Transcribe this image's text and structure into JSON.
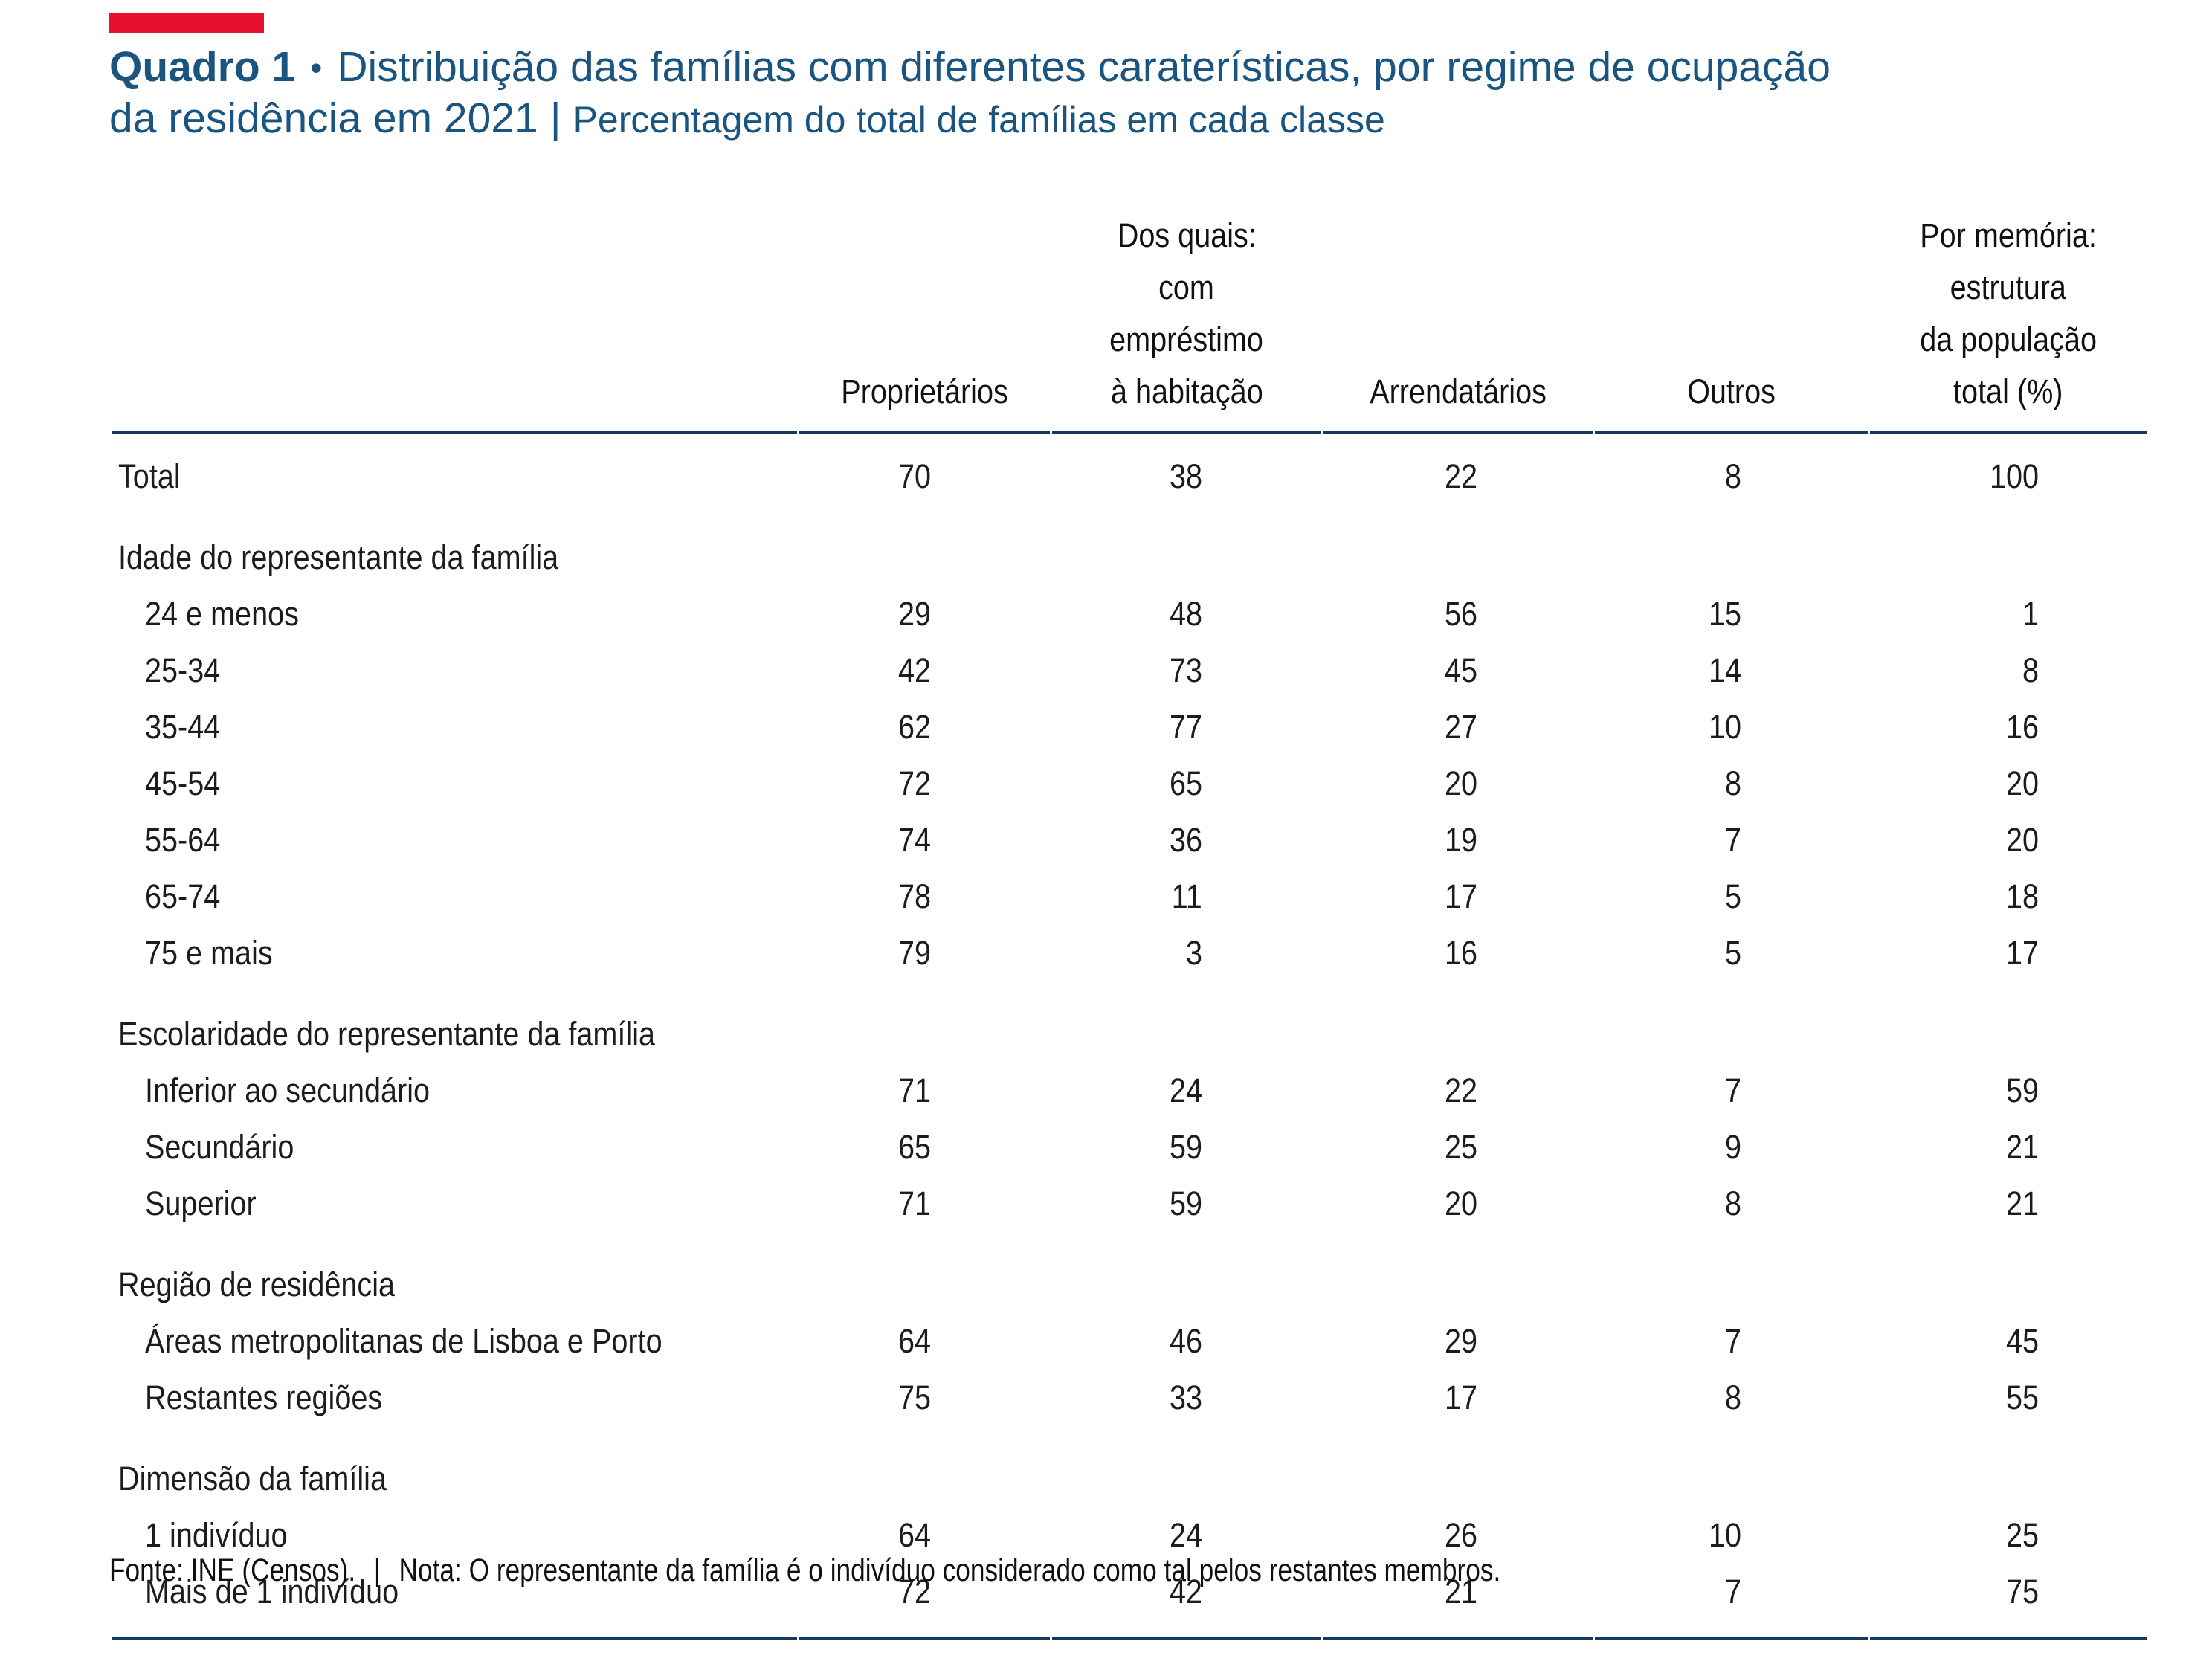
{
  "header": {
    "quadro_label": "Quadro 1",
    "bullet": "•",
    "title_line1": "Distribuição das famílias com diferentes caraterísticas, por regime de ocupação",
    "title_line2": "da residência em 2021",
    "separator": "|",
    "subtitle": "Percentagem do total de famílias em cada classe"
  },
  "table": {
    "columns": [
      {
        "lines": [
          "Proprietários"
        ]
      },
      {
        "lines": [
          "Dos quais:",
          "com",
          "empréstimo",
          "à habitação"
        ]
      },
      {
        "lines": [
          "Arrendatários"
        ]
      },
      {
        "lines": [
          "Outros"
        ]
      },
      {
        "lines": [
          "Por memória:",
          "estrutura",
          "da população",
          "total (%)"
        ]
      }
    ],
    "rows": [
      {
        "type": "total",
        "label": "Total",
        "values": [
          70,
          38,
          22,
          8,
          100
        ]
      },
      {
        "type": "section",
        "label": "Idade do representante da família"
      },
      {
        "type": "data",
        "label": "24 e menos",
        "values": [
          29,
          48,
          56,
          15,
          1
        ]
      },
      {
        "type": "data",
        "label": "25-34",
        "values": [
          42,
          73,
          45,
          14,
          8
        ]
      },
      {
        "type": "data",
        "label": "35-44",
        "values": [
          62,
          77,
          27,
          10,
          16
        ]
      },
      {
        "type": "data",
        "label": "45-54",
        "values": [
          72,
          65,
          20,
          8,
          20
        ]
      },
      {
        "type": "data",
        "label": "55-64",
        "values": [
          74,
          36,
          19,
          7,
          20
        ]
      },
      {
        "type": "data",
        "label": "65-74",
        "values": [
          78,
          11,
          17,
          5,
          18
        ]
      },
      {
        "type": "data",
        "label": "75 e mais",
        "values": [
          79,
          3,
          16,
          5,
          17
        ]
      },
      {
        "type": "section",
        "label": "Escolaridade do representante da família"
      },
      {
        "type": "data",
        "label": "Inferior ao secundário",
        "values": [
          71,
          24,
          22,
          7,
          59
        ]
      },
      {
        "type": "data",
        "label": "Secundário",
        "values": [
          65,
          59,
          25,
          9,
          21
        ]
      },
      {
        "type": "data",
        "label": "Superior",
        "values": [
          71,
          59,
          20,
          8,
          21
        ]
      },
      {
        "type": "section",
        "label": "Região de residência"
      },
      {
        "type": "data",
        "label": "Áreas metropolitanas de Lisboa e Porto",
        "values": [
          64,
          46,
          29,
          7,
          45
        ]
      },
      {
        "type": "data",
        "label": "Restantes regiões",
        "values": [
          75,
          33,
          17,
          8,
          55
        ]
      },
      {
        "type": "section",
        "label": "Dimensão da família"
      },
      {
        "type": "data",
        "label": "1 indivíduo",
        "values": [
          64,
          24,
          26,
          10,
          25
        ]
      },
      {
        "type": "data",
        "label": "Mais de 1 indivíduo",
        "values": [
          72,
          42,
          21,
          7,
          75
        ]
      }
    ]
  },
  "footer": {
    "fonte": "Fonte: INE (Censos).",
    "separator": "|",
    "nota": "Nota: O representante da família é o indivíduo considerado como tal pelos restantes membros."
  },
  "colors": {
    "title_blue": "#1A5480",
    "rule_blue": "#16395E",
    "accent_red": "#E8112D",
    "text": "#1C1C1C"
  }
}
